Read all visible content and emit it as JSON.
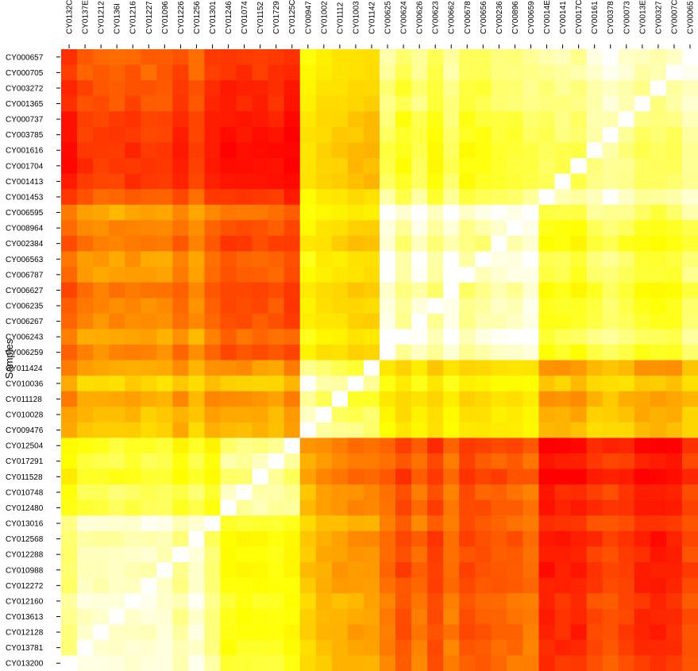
{
  "chart_data": {
    "type": "heatmap",
    "title": "",
    "xlabel": "",
    "ylabel": "Samples",
    "rows": [
      "CY000657",
      "CY000705",
      "CY003272",
      "CY001365",
      "CY000737",
      "CY003785",
      "CY001616",
      "CY001704",
      "CY001413",
      "CY001453",
      "CY006595",
      "CY008964",
      "CY002384",
      "CY006563",
      "CY006787",
      "CY006627",
      "CY006235",
      "CY006267",
      "CY006243",
      "CY006259",
      "CY011424",
      "CY010036",
      "CY011128",
      "CY010028",
      "CY009476",
      "CY012504",
      "CY017291",
      "CY011528",
      "CY010748",
      "CY012480",
      "CY013016",
      "CY012568",
      "CY012288",
      "CY010988",
      "CY012272",
      "CY012160",
      "CY013613",
      "CY012128",
      "CY013781",
      "CY013200"
    ],
    "columns": [
      "CY0132C",
      "CY0137E",
      "CY01212",
      "CY0136I",
      "CY01216",
      "CY01227",
      "CY01096",
      "CY01226",
      "CY01256",
      "CY01301",
      "CY01246",
      "CY01074",
      "CY01152",
      "CY01729",
      "CY0125C",
      "CY00947",
      "CY01002",
      "CY01112",
      "CY01003",
      "CY01142",
      "CY00625",
      "CY00624",
      "CY00626",
      "CY00623",
      "CY00662",
      "CY00678",
      "CY00656",
      "CY00236",
      "CY00896",
      "CY00659",
      "CY0014E",
      "CY00141",
      "CY0017C",
      "CY00161",
      "CY00378",
      "CY00073",
      "CY0013E",
      "CY00327",
      "CY0007C",
      "CY00065"
    ],
    "groups": [
      {
        "id": "A",
        "rows": [
          0,
          9
        ],
        "cols": [
          30,
          39
        ]
      },
      {
        "id": "B",
        "rows": [
          10,
          19
        ],
        "cols": [
          20,
          29
        ]
      },
      {
        "id": "C",
        "rows": [
          20,
          24
        ],
        "cols": [
          15,
          19
        ]
      },
      {
        "id": "D",
        "rows": [
          25,
          29
        ],
        "cols": [
          10,
          14
        ]
      },
      {
        "id": "E",
        "rows": [
          30,
          39
        ],
        "cols": [
          0,
          9
        ]
      }
    ],
    "group_similarity": {
      "A": {
        "A": 0.88,
        "B": 0.78,
        "C": 0.55,
        "D": 0.08,
        "E": 0.15
      },
      "B": {
        "A": 0.76,
        "B": 0.92,
        "C": 0.58,
        "D": 0.2,
        "E": 0.3
      },
      "C": {
        "A": 0.45,
        "B": 0.58,
        "C": 0.85,
        "D": 0.4,
        "E": 0.42
      },
      "D": {
        "A": 0.08,
        "B": 0.2,
        "C": 0.35,
        "D": 0.85,
        "E": 0.7
      },
      "E": {
        "A": 0.15,
        "B": 0.25,
        "C": 0.45,
        "D": 0.7,
        "E": 0.9
      }
    },
    "color_scale": [
      "#ff0000",
      "#ff4500",
      "#ff8c00",
      "#ffd700",
      "#ffff00",
      "#ffff80",
      "#ffffff"
    ],
    "value_range": [
      0,
      1
    ],
    "grid": false,
    "legend": "none"
  }
}
